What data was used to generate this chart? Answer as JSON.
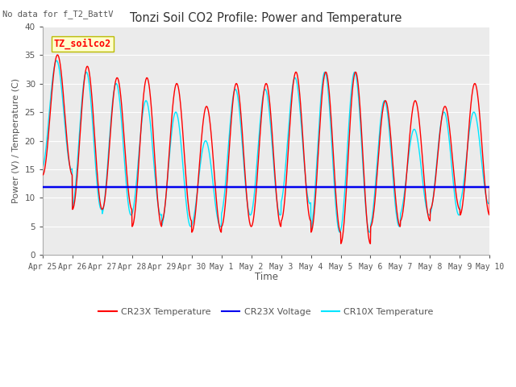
{
  "title": "Tonzi Soil CO2 Profile: Power and Temperature",
  "subtitle": "No data for f_T2_BattV",
  "ylabel": "Power (V) / Temperature (C)",
  "xlabel": "Time",
  "ylim": [
    0,
    40
  ],
  "legend_label": "TZ_soilco2",
  "x_tick_labels": [
    "Apr 25",
    "Apr 26",
    "Apr 27",
    "Apr 28",
    "Apr 29",
    "Apr 30",
    "May 1",
    "May 2",
    "May 3",
    "May 4",
    "May 5",
    "May 6",
    "May 7",
    "May 8",
    "May 9",
    "May 10"
  ],
  "cr23x_color": "#ff0000",
  "cr10x_color": "#00e5ff",
  "voltage_color": "#0000ee",
  "fig_bg_color": "#ffffff",
  "plot_bg_color": "#ebebeb",
  "grid_color": "#ffffff",
  "legend_bg": "#ffffcc",
  "legend_border": "#bbbb00",
  "title_color": "#333333",
  "tick_color": "#555555",
  "label_color": "#555555",
  "subtitle_color": "#555555"
}
